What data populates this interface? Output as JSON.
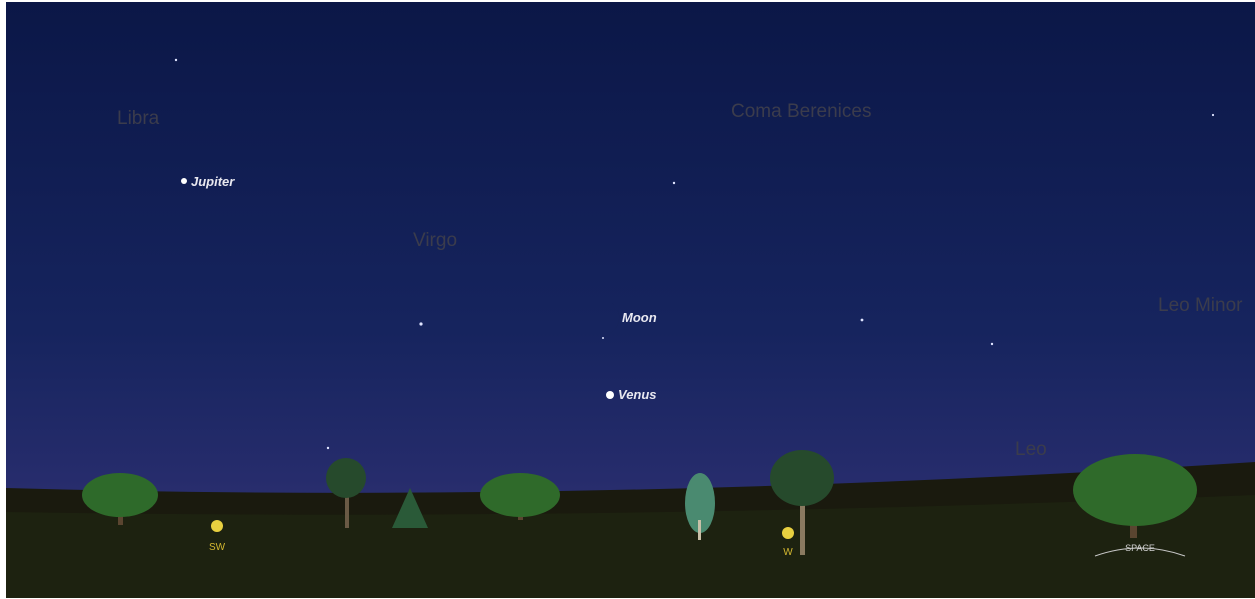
{
  "constellations": [
    "Libra",
    "Coma Berenices",
    "Virgo",
    "Leo Minor",
    "Leo"
  ],
  "planets": [
    "Jupiter",
    "Moon",
    "Venus"
  ],
  "compass": [
    "SW",
    "W"
  ],
  "button": "SPACE"
}
